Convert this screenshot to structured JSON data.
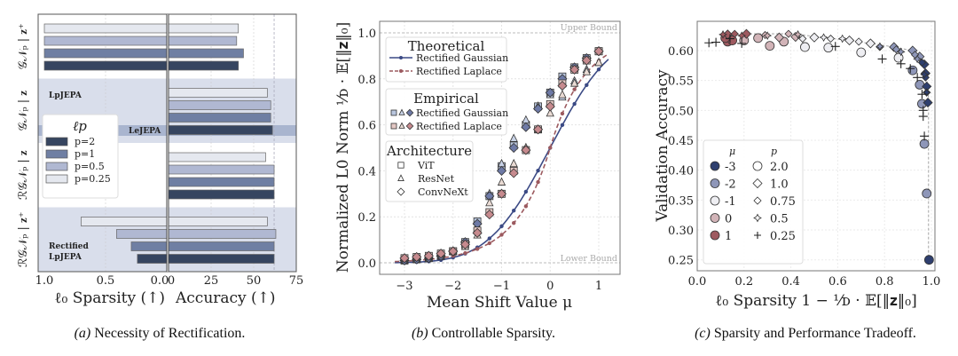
{
  "colors": {
    "p2": "#364560",
    "p1": "#6f7fa3",
    "p05": "#b0b8d2",
    "p025": "#e5e8ef",
    "band": "#d9deeb",
    "lejepa_band": "#a9b5cf",
    "gauss": "#3b4a85",
    "laplace": "#9c5a5f",
    "gauss_vit": "#b9c6de",
    "gauss_resnet": "#c8d2e6",
    "gauss_convnext": "#6e7aa6",
    "lap_vit": "#e4c8c4",
    "lap_resnet": "#eadbd4",
    "lap_convnext": "#c68a8e",
    "mu_-3": "#2e3f6e",
    "mu_-2": "#8e96b8",
    "mu_-1": "#eeeef2",
    "mu_0": "#d2b4b8",
    "mu_1": "#9e5a60"
  },
  "chart_data": [
    {
      "type": "bar",
      "orientation": "horizontal",
      "caption_prefix": "(a)",
      "caption": " Necessity of Rectification.",
      "groups": [
        "𝒢𝒩ₚ | 𝐳⁺",
        "𝒢𝒩ₚ | 𝐳",
        "ℛ𝒢𝒩ₚ | 𝐳",
        "ℛ𝒢𝒩ₚ | 𝐳⁺"
      ],
      "group_annotations": [
        "",
        "LpJEPA",
        "",
        "Rectified LpJEPA"
      ],
      "highlight_label": "LeJEPA",
      "shaded_groups": [
        1,
        3
      ],
      "series": [
        {
          "name": "p=0.25",
          "color_key": "p025",
          "sparsity": [
            1.0,
            0.0,
            0.0,
            0.7
          ],
          "accuracy": [
            41,
            58,
            57,
            58
          ]
        },
        {
          "name": "p=0.5",
          "color_key": "p05",
          "sparsity": [
            1.0,
            0.0,
            0.0,
            0.41
          ],
          "accuracy": [
            40,
            60,
            62,
            63
          ]
        },
        {
          "name": "p=1",
          "color_key": "p1",
          "sparsity": [
            1.0,
            0.0,
            0.0,
            0.29
          ],
          "accuracy": [
            44,
            60,
            62,
            62
          ]
        },
        {
          "name": "p=2",
          "color_key": "p2",
          "sparsity": [
            1.0,
            0.0,
            0.0,
            0.24
          ],
          "accuracy": [
            41,
            61,
            62,
            62
          ]
        }
      ],
      "legend_title": "ℓp",
      "legend_order": [
        "p=2",
        "p=1",
        "p=0.5",
        "p=0.25"
      ],
      "legend_placement": "center-left",
      "left_xlabel": "ℓ₀ Sparsity (↑)",
      "right_xlabel": "Accuracy (↑)",
      "left_xlim": [
        1.0,
        0.0
      ],
      "left_ticks": [
        "1.0",
        "0.5",
        "0.0"
      ],
      "right_xlim": [
        0,
        75
      ],
      "right_ticks": [
        "0",
        "25",
        "50",
        "75"
      ],
      "reference_accuracy": 62
    },
    {
      "type": "line",
      "caption_prefix": "(b)",
      "caption": " Controllable Sparsity.",
      "xlabel": "Mean Shift Value μ",
      "ylabel": "Normalized L0 Norm ¹⁄ᴅ · 𝔼[‖𝐳‖₀]",
      "xlim": [
        -3.4,
        1.4
      ],
      "ylim": [
        -0.05,
        1.05
      ],
      "xticks": [
        "−3",
        "−2",
        "−1",
        "0",
        "1"
      ],
      "yticks": [
        "0.0",
        "0.2",
        "0.4",
        "0.6",
        "0.8",
        "1.0"
      ],
      "upper_bound_label": "Upper Bound",
      "lower_bound_label": "Lower Bound",
      "grid": true,
      "x": [
        -3,
        -2.75,
        -2.5,
        -2.25,
        -2,
        -1.75,
        -1.5,
        -1.25,
        -1,
        -0.75,
        -0.5,
        -0.25,
        0,
        0.25,
        0.5,
        0.75,
        1
      ],
      "theoretical": [
        {
          "name": "Rectified Gaussian",
          "color_key": "gauss",
          "dash": false,
          "values": [
            0.001,
            0.003,
            0.006,
            0.012,
            0.023,
            0.04,
            0.067,
            0.106,
            0.159,
            0.227,
            0.309,
            0.401,
            0.5,
            0.599,
            0.691,
            0.773,
            0.841
          ]
        },
        {
          "name": "Rectified Laplace",
          "color_key": "laplace",
          "dash": true,
          "values": [
            0.007,
            0.01,
            0.015,
            0.021,
            0.03,
            0.042,
            0.06,
            0.085,
            0.122,
            0.173,
            0.246,
            0.351,
            0.5,
            0.649,
            0.754,
            0.827,
            0.878
          ]
        }
      ],
      "empirical": [
        {
          "dist": "Rectified Gaussian",
          "arch": "ViT",
          "marker": "square",
          "color_key": "gauss_vit",
          "values": [
            0.01,
            0.015,
            0.02,
            0.03,
            0.05,
            0.09,
            0.18,
            0.29,
            0.42,
            0.51,
            0.6,
            0.68,
            0.74,
            0.81,
            0.85,
            0.89,
            0.92
          ]
        },
        {
          "dist": "Rectified Gaussian",
          "arch": "ResNet",
          "marker": "triangle",
          "color_key": "gauss_resnet",
          "values": [
            0.01,
            0.015,
            0.02,
            0.03,
            0.05,
            0.08,
            0.16,
            0.3,
            0.43,
            0.54,
            0.62,
            0.68,
            0.73,
            0.72,
            0.79,
            0.84,
            0.87
          ]
        },
        {
          "dist": "Rectified Gaussian",
          "arch": "ConvNeXt",
          "marker": "diamond",
          "color_key": "gauss_convnext",
          "values": [
            0.01,
            0.015,
            0.02,
            0.03,
            0.05,
            0.09,
            0.17,
            0.29,
            0.4,
            0.5,
            0.59,
            0.67,
            0.74,
            0.8,
            0.85,
            0.89,
            0.92
          ]
        },
        {
          "dist": "Rectified Laplace",
          "arch": "ViT",
          "marker": "square",
          "color_key": "lap_vit",
          "values": [
            0.02,
            0.025,
            0.03,
            0.04,
            0.05,
            0.08,
            0.14,
            0.22,
            0.3,
            0.4,
            0.49,
            0.58,
            0.69,
            0.78,
            0.84,
            0.88,
            0.92
          ]
        },
        {
          "dist": "Rectified Laplace",
          "arch": "ResNet",
          "marker": "triangle",
          "color_key": "lap_resnet",
          "values": [
            0.02,
            0.025,
            0.03,
            0.04,
            0.05,
            0.07,
            0.12,
            0.26,
            0.35,
            0.43,
            0.5,
            0.58,
            0.65,
            0.73,
            0.78,
            0.83,
            0.87
          ]
        },
        {
          "dist": "Rectified Laplace",
          "arch": "ConvNeXt",
          "marker": "diamond",
          "color_key": "lap_convnext",
          "values": [
            0.02,
            0.025,
            0.03,
            0.04,
            0.05,
            0.08,
            0.13,
            0.21,
            0.3,
            0.39,
            0.49,
            0.58,
            0.68,
            0.77,
            0.84,
            0.88,
            0.92
          ]
        }
      ],
      "legend": {
        "theoretical_title": "Theoretical",
        "empirical_title": "Empirical",
        "architecture_title": "Architecture",
        "empirical_labels": [
          "Rectified Gaussian",
          "Rectified Laplace"
        ],
        "architectures": [
          "ViT",
          "ResNet",
          "ConvNeXt"
        ],
        "placement": "upper-left"
      }
    },
    {
      "type": "scatter",
      "caption_prefix": "(c)",
      "caption": " Sparsity and Performance Tradeoff.",
      "xlabel": "ℓ₀ Sparsity 1 − ¹⁄ᴅ · 𝔼[‖𝐳‖₀]",
      "ylabel": "Validation Accuracy",
      "xlim": [
        0.0,
        1.02
      ],
      "ylim": [
        0.232,
        0.645
      ],
      "xticks": [
        "0.0",
        "0.2",
        "0.4",
        "0.6",
        "0.8",
        "1.0"
      ],
      "yticks": [
        "0.25",
        "0.30",
        "0.35",
        "0.40",
        "0.45",
        "0.50",
        "0.55",
        "0.60"
      ],
      "grid": true,
      "legend": {
        "mu_title": "μ",
        "p_title": "p",
        "mu": [
          "-3",
          "-2",
          "-1",
          "0",
          "1"
        ],
        "p": [
          "2.0",
          "1.0",
          "0.75",
          "0.5",
          "0.25"
        ],
        "placement": "lower-left"
      },
      "series": [
        {
          "p": "2.0",
          "marker": "circle",
          "points": [
            [
              0.13,
              0.615,
              1
            ],
            [
              0.15,
              0.617,
              1
            ],
            [
              0.12,
              0.621,
              1
            ],
            [
              0.2,
              0.617,
              0
            ],
            [
              0.26,
              0.621,
              0
            ],
            [
              0.31,
              0.608,
              0
            ],
            [
              0.37,
              0.615,
              0
            ],
            [
              0.46,
              0.606,
              -1
            ],
            [
              0.56,
              0.605,
              -1
            ],
            [
              0.7,
              0.597,
              -1
            ],
            [
              0.86,
              0.588,
              -1
            ],
            [
              0.92,
              0.567,
              -2
            ],
            [
              0.95,
              0.543,
              -2
            ],
            [
              0.96,
              0.511,
              -2
            ],
            [
              0.97,
              0.444,
              -2
            ],
            [
              0.98,
              0.361,
              -2
            ],
            [
              0.99,
              0.25,
              -3
            ]
          ]
        },
        {
          "p": "1.0",
          "marker": "diamond",
          "points": [
            [
              0.13,
              0.627,
              1
            ],
            [
              0.21,
              0.628,
              1
            ],
            [
              0.35,
              0.622,
              0
            ],
            [
              0.42,
              0.623,
              0
            ],
            [
              0.5,
              0.622,
              -1
            ],
            [
              0.65,
              0.617,
              -1
            ],
            [
              0.74,
              0.612,
              -1
            ],
            [
              0.84,
              0.606,
              -2
            ],
            [
              0.92,
              0.6,
              -2
            ],
            [
              0.95,
              0.59,
              -2
            ],
            [
              0.97,
              0.577,
              -3
            ],
            [
              0.975,
              0.562,
              -3
            ],
            [
              0.98,
              0.54,
              -3
            ],
            [
              0.985,
              0.513,
              -3
            ]
          ]
        },
        {
          "p": "0.75",
          "marker": "diamond-small",
          "points": [
            [
              0.16,
              0.628,
              1
            ],
            [
              0.29,
              0.626,
              0
            ],
            [
              0.39,
              0.628,
              0
            ],
            [
              0.45,
              0.62,
              -1
            ],
            [
              0.57,
              0.62,
              -1
            ],
            [
              0.69,
              0.615,
              -1
            ],
            [
              0.78,
              0.606,
              -2
            ],
            [
              0.85,
              0.602,
              -2
            ],
            [
              0.93,
              0.593,
              -2
            ],
            [
              0.96,
              0.58,
              -3
            ],
            [
              0.975,
              0.555,
              -3
            ],
            [
              0.98,
              0.53,
              -3
            ]
          ]
        },
        {
          "p": "0.5",
          "marker": "star",
          "points": [
            [
              0.11,
              0.627,
              1
            ],
            [
              0.19,
              0.625,
              1
            ],
            [
              0.3,
              0.625,
              0
            ],
            [
              0.43,
              0.627,
              0
            ],
            [
              0.54,
              0.622,
              -1
            ],
            [
              0.62,
              0.62,
              -1
            ],
            [
              0.78,
              0.607,
              -2
            ],
            [
              0.87,
              0.598,
              -2
            ],
            [
              0.94,
              0.586,
              -2
            ],
            [
              0.97,
              0.56,
              -3
            ],
            [
              0.98,
              0.53,
              -3
            ]
          ]
        },
        {
          "p": "0.25",
          "marker": "plus",
          "points": [
            [
              0.05,
              0.613,
              1
            ],
            [
              0.08,
              0.614,
              1
            ],
            [
              0.14,
              0.62,
              1
            ],
            [
              0.19,
              0.612,
              0
            ],
            [
              0.59,
              0.607,
              -1
            ],
            [
              0.79,
              0.586,
              -2
            ],
            [
              0.87,
              0.578,
              -2
            ],
            [
              0.91,
              0.57,
              -2
            ],
            [
              0.94,
              0.555,
              -2
            ],
            [
              0.96,
              0.527,
              -3
            ],
            [
              0.965,
              0.5,
              -3
            ],
            [
              0.965,
              0.49,
              -3
            ],
            [
              0.97,
              0.457,
              -3
            ]
          ]
        }
      ],
      "frontier": [
        [
          0.11,
          0.627
        ],
        [
          0.21,
          0.628
        ],
        [
          0.39,
          0.628
        ],
        [
          0.43,
          0.627
        ],
        [
          0.54,
          0.622
        ],
        [
          0.74,
          0.612
        ],
        [
          0.84,
          0.606
        ],
        [
          0.92,
          0.6
        ],
        [
          0.97,
          0.577
        ],
        [
          0.985,
          0.54
        ],
        [
          0.988,
          0.513
        ],
        [
          0.988,
          0.25
        ]
      ]
    }
  ]
}
